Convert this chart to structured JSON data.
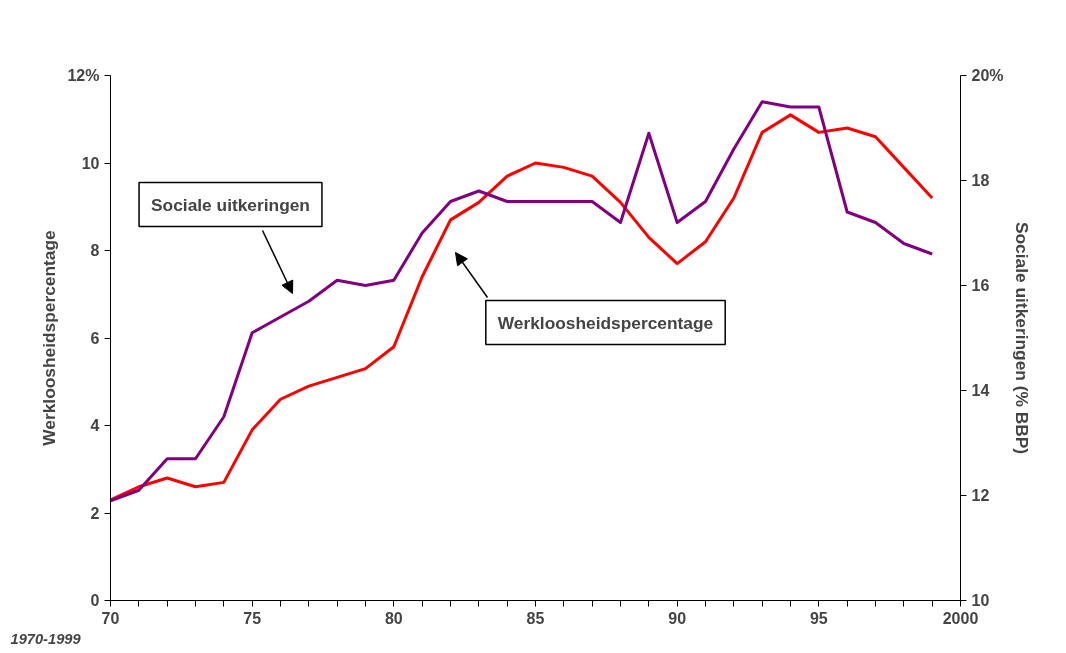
{
  "chart_data": {
    "type": "line",
    "ylabel": "Werkloosheidspercentage",
    "y2label": "Sociale uitkeringen (% BBP)",
    "x": [
      1970,
      1971,
      1972,
      1973,
      1974,
      1975,
      1976,
      1977,
      1978,
      1979,
      1980,
      1981,
      1982,
      1983,
      1984,
      1985,
      1986,
      1987,
      1988,
      1989,
      1990,
      1991,
      1992,
      1993,
      1994,
      1995,
      1996,
      1997,
      1998,
      1999
    ],
    "series": [
      {
        "color": "#ff0000",
        "values": [
          2.3,
          2.6,
          2.8,
          2.6,
          2.7,
          3.9,
          4.6,
          4.9,
          5.1,
          5.3,
          5.8,
          7.4,
          8.7,
          9.1,
          9.7,
          10.0,
          9.9,
          9.7,
          9.1,
          8.3,
          7.7,
          8.2,
          9.2,
          10.7,
          11.1,
          10.7,
          10.8,
          10.6,
          9.9,
          9.2
        ]
      },
      {
        "color": "#800080",
        "axis": "y2",
        "values": [
          11.9,
          12.1,
          12.7,
          12.7,
          13.5,
          15.1,
          15.4,
          15.7,
          16.1,
          16.0,
          16.1,
          17.0,
          17.6,
          17.8,
          17.6,
          17.6,
          17.6,
          17.6,
          17.2,
          18.9,
          17.2,
          17.6,
          18.6,
          19.5,
          19.4,
          19.4,
          17.4,
          17.2,
          16.8,
          16.6
        ]
      }
    ],
    "xlim": [
      1970,
      2000
    ],
    "xticks": [
      {
        "value": 1970,
        "label": "70"
      },
      {
        "value": 1971,
        "label": null
      },
      {
        "value": 1972,
        "label": null
      },
      {
        "value": 1973,
        "label": null
      },
      {
        "value": 1974,
        "label": null
      },
      {
        "value": 1975,
        "label": "75"
      },
      {
        "value": 1976,
        "label": null
      },
      {
        "value": 1977,
        "label": null
      },
      {
        "value": 1978,
        "label": null
      },
      {
        "value": 1979,
        "label": null
      },
      {
        "value": 1980,
        "label": "80"
      },
      {
        "value": 1981,
        "label": null
      },
      {
        "value": 1982,
        "label": null
      },
      {
        "value": 1983,
        "label": null
      },
      {
        "value": 1984,
        "label": null
      },
      {
        "value": 1985,
        "label": "85"
      },
      {
        "value": 1986,
        "label": null
      },
      {
        "value": 1987,
        "label": null
      },
      {
        "value": 1988,
        "label": null
      },
      {
        "value": 1989,
        "label": null
      },
      {
        "value": 1990,
        "label": "90"
      },
      {
        "value": 1991,
        "label": null
      },
      {
        "value": 1992,
        "label": null
      },
      {
        "value": 1993,
        "label": null
      },
      {
        "value": 1994,
        "label": null
      },
      {
        "value": 1995,
        "label": "95"
      },
      {
        "value": 1996,
        "label": null
      },
      {
        "value": 1997,
        "label": null
      },
      {
        "value": 1998,
        "label": null
      },
      {
        "value": 1999,
        "label": null
      },
      2000
    ],
    "ylim": [
      0,
      12
    ],
    "yticks": [
      0,
      2,
      4,
      6,
      8,
      10,
      {
        "value": 12,
        "label": "12%"
      }
    ],
    "y2lim": [
      10,
      20
    ],
    "y2ticks": [
      10,
      12,
      14,
      16,
      18,
      {
        "value": 20,
        "label": "20%"
      }
    ],
    "grid": false,
    "annotations": [
      "Sociale uitkeringen",
      "Werkloosheidspercentage",
      "1970-1999"
    ]
  }
}
